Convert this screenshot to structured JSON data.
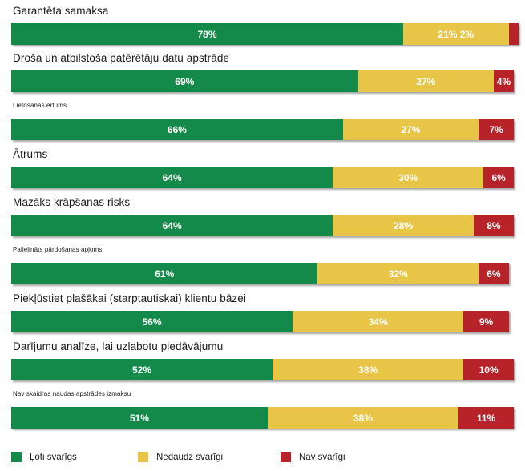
{
  "chart_data": {
    "type": "bar",
    "orientation": "horizontal",
    "stacked": true,
    "categories": [
      "Garantēta samaksa",
      "Droša un atbilstoša patērētāju datu apstrāde",
      "Lietošanas ērtums",
      "Ātrums",
      "Mazāks krāpšanas risks",
      "Palielināts pārdošanas apjoms",
      "Piekļūstiet plašākai (starptautiskai) klientu bāzei",
      "Darījumu analīze, lai uzlabotu piedāvājumu",
      "Nav skaidras naudas apstrādes izmaksu"
    ],
    "series": [
      {
        "name": "Ļoti svarīgs",
        "color": "#138a4a",
        "values": [
          78,
          69,
          66,
          64,
          64,
          61,
          56,
          52,
          51
        ]
      },
      {
        "name": "Nedaudz svarīgi",
        "color": "#e8c547",
        "values": [
          21,
          27,
          27,
          30,
          28,
          32,
          34,
          38,
          38
        ]
      },
      {
        "name": "Nav svarīgi",
        "color": "#b8232a",
        "values": [
          2,
          4,
          7,
          6,
          8,
          6,
          9,
          10,
          11
        ]
      }
    ],
    "data_labels": [
      [
        "78%",
        "21% 2%",
        ""
      ],
      [
        "69%",
        "27%",
        "4%"
      ],
      [
        "66%",
        "27%",
        "7%"
      ],
      [
        "64%",
        "30%",
        "6%"
      ],
      [
        "64%",
        "28%",
        "8%"
      ],
      [
        "61%",
        "32%",
        "6%"
      ],
      [
        "56%",
        "34%",
        "9%"
      ],
      [
        "52%",
        "38%",
        "10%"
      ],
      [
        "51%",
        "38%",
        "11%"
      ]
    ],
    "label_style": [
      "big",
      "big",
      "small",
      "big",
      "big",
      "small",
      "big",
      "big",
      "small"
    ],
    "legend": [
      {
        "label": "Ļoti svarīgs",
        "color": "#138a4a"
      },
      {
        "label": "Nedaudz svarīgi",
        "color": "#e8c547"
      },
      {
        "label": "Nav svarīgi",
        "color": "#b8232a"
      }
    ],
    "legend_position": "bottom"
  }
}
